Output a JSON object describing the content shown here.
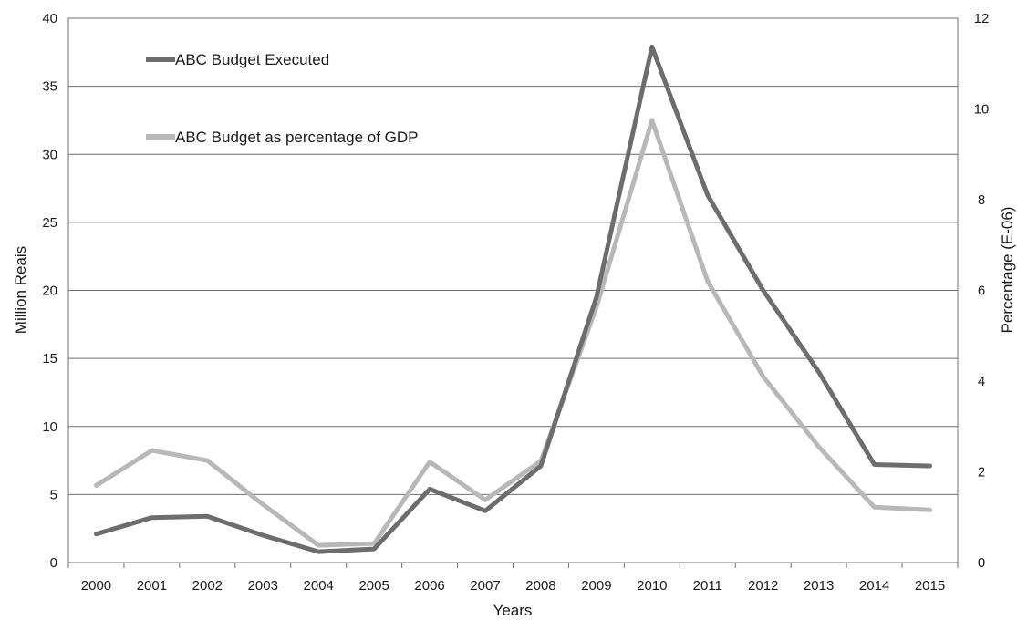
{
  "chart_data": {
    "type": "line",
    "title": "",
    "xlabel": "Years",
    "ylabel": "Million Reais",
    "y2label": "Percentage (E-06)",
    "x": [
      "2000",
      "2001",
      "2002",
      "2003",
      "2004",
      "2005",
      "2006",
      "2007",
      "2008",
      "2009",
      "2010",
      "2011",
      "2012",
      "2013",
      "2014",
      "2015"
    ],
    "ylim": [
      0,
      40
    ],
    "yticks": [
      "0",
      "5",
      "10",
      "15",
      "20",
      "25",
      "30",
      "35",
      "40"
    ],
    "y2lim": [
      0,
      12
    ],
    "y2ticks": [
      "0",
      "2",
      "4",
      "6",
      "8",
      "10",
      "12"
    ],
    "grid": true,
    "legend_placement": "top-left",
    "series": [
      {
        "name": "ABC Budget Executed",
        "axis": "left",
        "color": "#6d6d6d",
        "values": [
          2.1,
          3.3,
          3.4,
          2.0,
          0.8,
          1.0,
          5.4,
          3.8,
          7.1,
          19.5,
          37.9,
          27.0,
          20.0,
          14.0,
          7.2,
          7.1
        ]
      },
      {
        "name": "ABC Budget as percentage of GDP",
        "axis": "right",
        "color": "#b8b8b8",
        "values": [
          1.7,
          2.47,
          2.25,
          1.28,
          0.38,
          0.42,
          2.22,
          1.38,
          2.24,
          5.63,
          9.75,
          6.2,
          4.1,
          2.55,
          1.22,
          1.16
        ]
      }
    ]
  }
}
